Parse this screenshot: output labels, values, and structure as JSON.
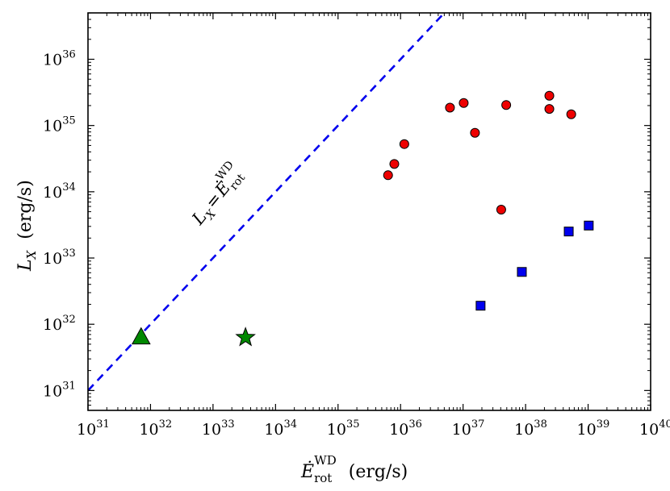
{
  "chart_data": {
    "type": "scatter",
    "xscale": "log",
    "yscale": "log",
    "xlim_exp": [
      31,
      40
    ],
    "ylim_exp": [
      30.7,
      36.7
    ],
    "x_ticks": [
      {
        "base": "10",
        "exp": "31",
        "value": 31
      },
      {
        "base": "10",
        "exp": "32",
        "value": 32
      },
      {
        "base": "10",
        "exp": "33",
        "value": 33
      },
      {
        "base": "10",
        "exp": "34",
        "value": 34
      },
      {
        "base": "10",
        "exp": "35",
        "value": 35
      },
      {
        "base": "10",
        "exp": "36",
        "value": 36
      },
      {
        "base": "10",
        "exp": "37",
        "value": 37
      },
      {
        "base": "10",
        "exp": "38",
        "value": 38
      },
      {
        "base": "10",
        "exp": "39",
        "value": 39
      },
      {
        "base": "10",
        "exp": "40",
        "value": 40
      }
    ],
    "y_ticks": [
      {
        "base": "10",
        "exp": "31",
        "value": 31
      },
      {
        "base": "10",
        "exp": "32",
        "value": 32
      },
      {
        "base": "10",
        "exp": "33",
        "value": 33
      },
      {
        "base": "10",
        "exp": "34",
        "value": 34
      },
      {
        "base": "10",
        "exp": "35",
        "value": 35
      },
      {
        "base": "10",
        "exp": "36",
        "value": 36
      }
    ],
    "xlabel": {
      "main": "Ė",
      "sub": "rot",
      "sup": "WD",
      "units": "(erg/s)"
    },
    "ylabel": {
      "main": "L",
      "sub": "X",
      "units": "(erg/s)"
    },
    "reference_line": {
      "label_lhs": "L",
      "label_lhs_sub": "X",
      "label_eq": "=",
      "label_rhs": "Ė",
      "label_rhs_sub": "rot",
      "label_rhs_sup": "WD",
      "color": "#0000ee",
      "style": "dashed",
      "from_exp": 31,
      "to_exp": 36.7
    },
    "series": [
      {
        "name": "red-circles",
        "marker": "circle",
        "color": "#ee0000",
        "points": [
          {
            "x": 35.8,
            "y": 34.25
          },
          {
            "x": 35.9,
            "y": 34.42
          },
          {
            "x": 36.06,
            "y": 34.72
          },
          {
            "x": 36.79,
            "y": 35.27
          },
          {
            "x": 37.01,
            "y": 35.34
          },
          {
            "x": 37.19,
            "y": 34.89
          },
          {
            "x": 37.69,
            "y": 35.31
          },
          {
            "x": 37.61,
            "y": 33.73
          },
          {
            "x": 38.38,
            "y": 35.45
          },
          {
            "x": 38.38,
            "y": 35.25
          },
          {
            "x": 38.73,
            "y": 35.17
          }
        ]
      },
      {
        "name": "blue-squares",
        "marker": "square",
        "color": "#0000ee",
        "points": [
          {
            "x": 37.28,
            "y": 32.28
          },
          {
            "x": 37.94,
            "y": 32.79
          },
          {
            "x": 38.69,
            "y": 33.4
          },
          {
            "x": 39.01,
            "y": 33.49
          }
        ]
      },
      {
        "name": "green-triangle",
        "marker": "triangle",
        "color": "#008800",
        "points": [
          {
            "x": 31.85,
            "y": 31.8
          }
        ]
      },
      {
        "name": "green-star",
        "marker": "star",
        "color": "#008800",
        "points": [
          {
            "x": 33.52,
            "y": 31.8
          }
        ]
      }
    ]
  }
}
